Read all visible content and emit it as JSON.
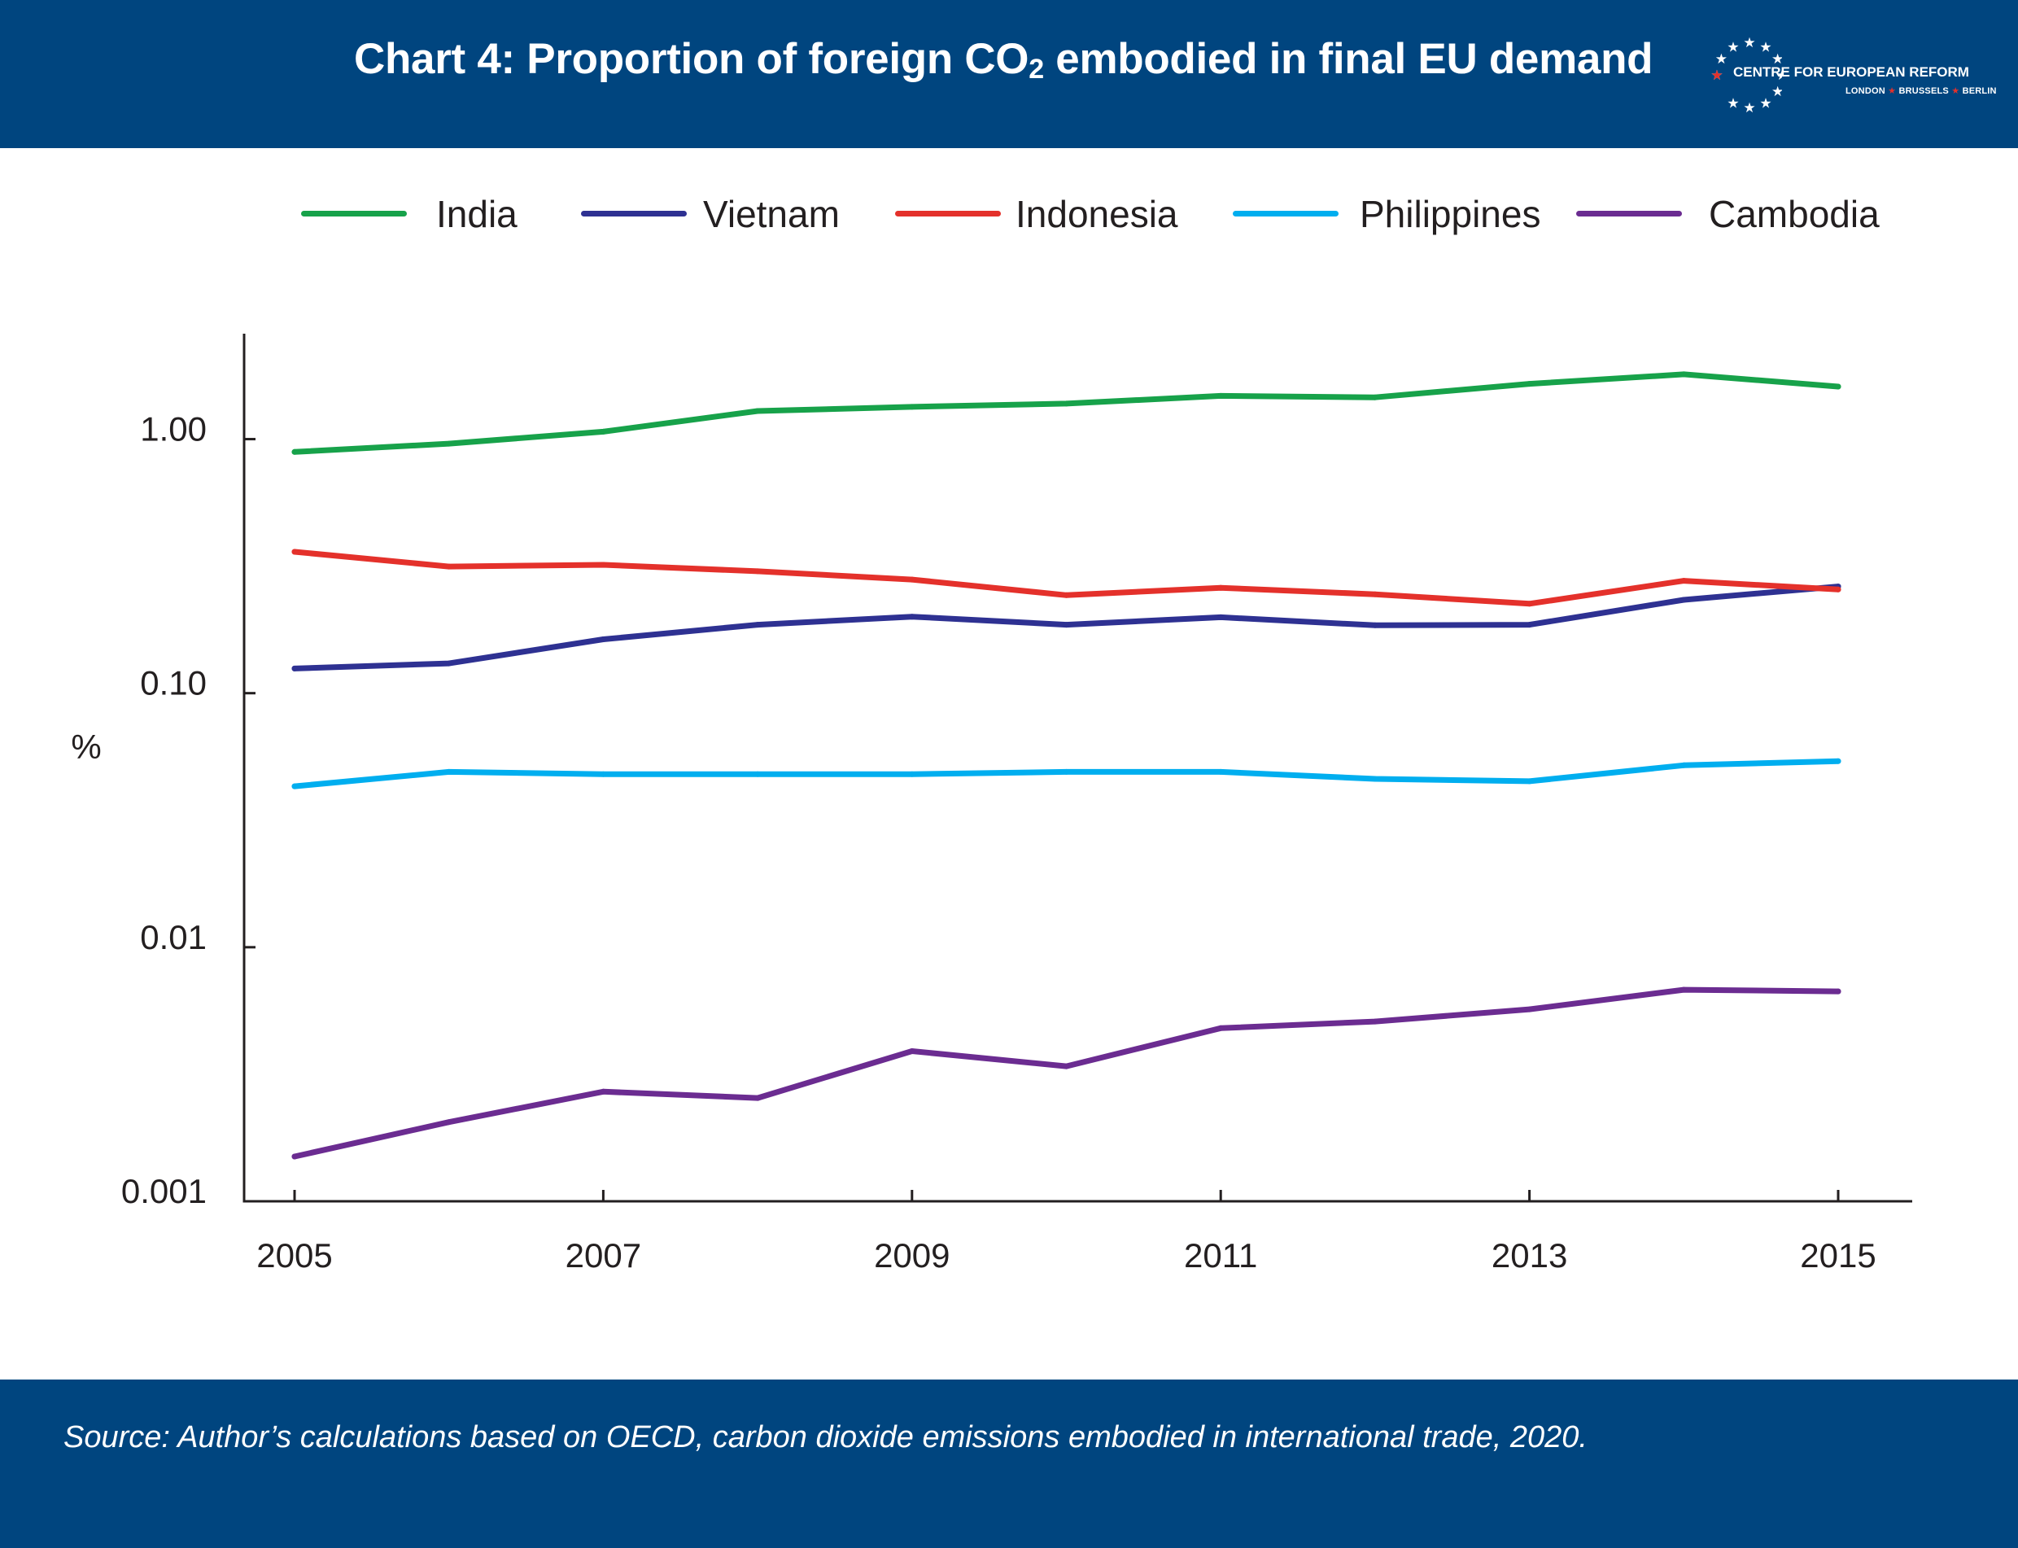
{
  "header": {
    "title_prefix": "Chart 4: Proportion of foreign CO",
    "title_subscript": "2",
    "title_suffix": " embodied in final EU demand"
  },
  "logo": {
    "name": "CENTRE FOR EUROPEAN REFORM",
    "city_1": "LONDON",
    "city_2": "BRUSSELS",
    "city_3": "BERLIN"
  },
  "footer": {
    "source": "Source: Author’s calculations based on OECD, carbon dioxide emissions embodied in international trade, 2020."
  },
  "chart_data": {
    "type": "line",
    "title": "Chart 4: Proportion of foreign CO2 embodied in final EU demand",
    "ylabel": "%",
    "xlabel": "",
    "y_scale": "log",
    "ylim": [
      0.001,
      2.6
    ],
    "x_range": [
      2005,
      2015
    ],
    "grid": false,
    "legend_position": "top",
    "x_tick_labels": [
      "2005",
      "2007",
      "2009",
      "2011",
      "2013",
      "2015"
    ],
    "y_ticks": [
      {
        "value": 0.001,
        "label": "0.001"
      },
      {
        "value": 0.01,
        "label": "0.01"
      },
      {
        "value": 0.1,
        "label": "0.10"
      },
      {
        "value": 1,
        "label": "1.00"
      }
    ],
    "x": [
      2005,
      2006,
      2007,
      2008,
      2009,
      2010,
      2011,
      2012,
      2013,
      2014,
      2015
    ],
    "series": [
      {
        "name": "India",
        "color": "#17a24a",
        "values": [
          0.89,
          0.96,
          1.07,
          1.29,
          1.34,
          1.38,
          1.48,
          1.46,
          1.65,
          1.8,
          1.61
        ]
      },
      {
        "name": "Vietnam",
        "color": "#2e3192",
        "values": [
          0.125,
          0.131,
          0.163,
          0.186,
          0.2,
          0.186,
          0.199,
          0.185,
          0.186,
          0.233,
          0.263
        ]
      },
      {
        "name": "Indonesia",
        "color": "#e4312b",
        "values": [
          0.36,
          0.315,
          0.32,
          0.302,
          0.28,
          0.243,
          0.26,
          0.245,
          0.225,
          0.277,
          0.256
        ]
      },
      {
        "name": "Philippines",
        "color": "#00aeef",
        "values": [
          0.043,
          0.049,
          0.048,
          0.048,
          0.048,
          0.049,
          0.049,
          0.046,
          0.045,
          0.052,
          0.054
        ]
      },
      {
        "name": "Cambodia",
        "color": "#6b2c91",
        "values": [
          0.0015,
          0.00205,
          0.0027,
          0.00255,
          0.0039,
          0.0034,
          0.0048,
          0.0051,
          0.0057,
          0.0068,
          0.0067
        ]
      }
    ]
  }
}
